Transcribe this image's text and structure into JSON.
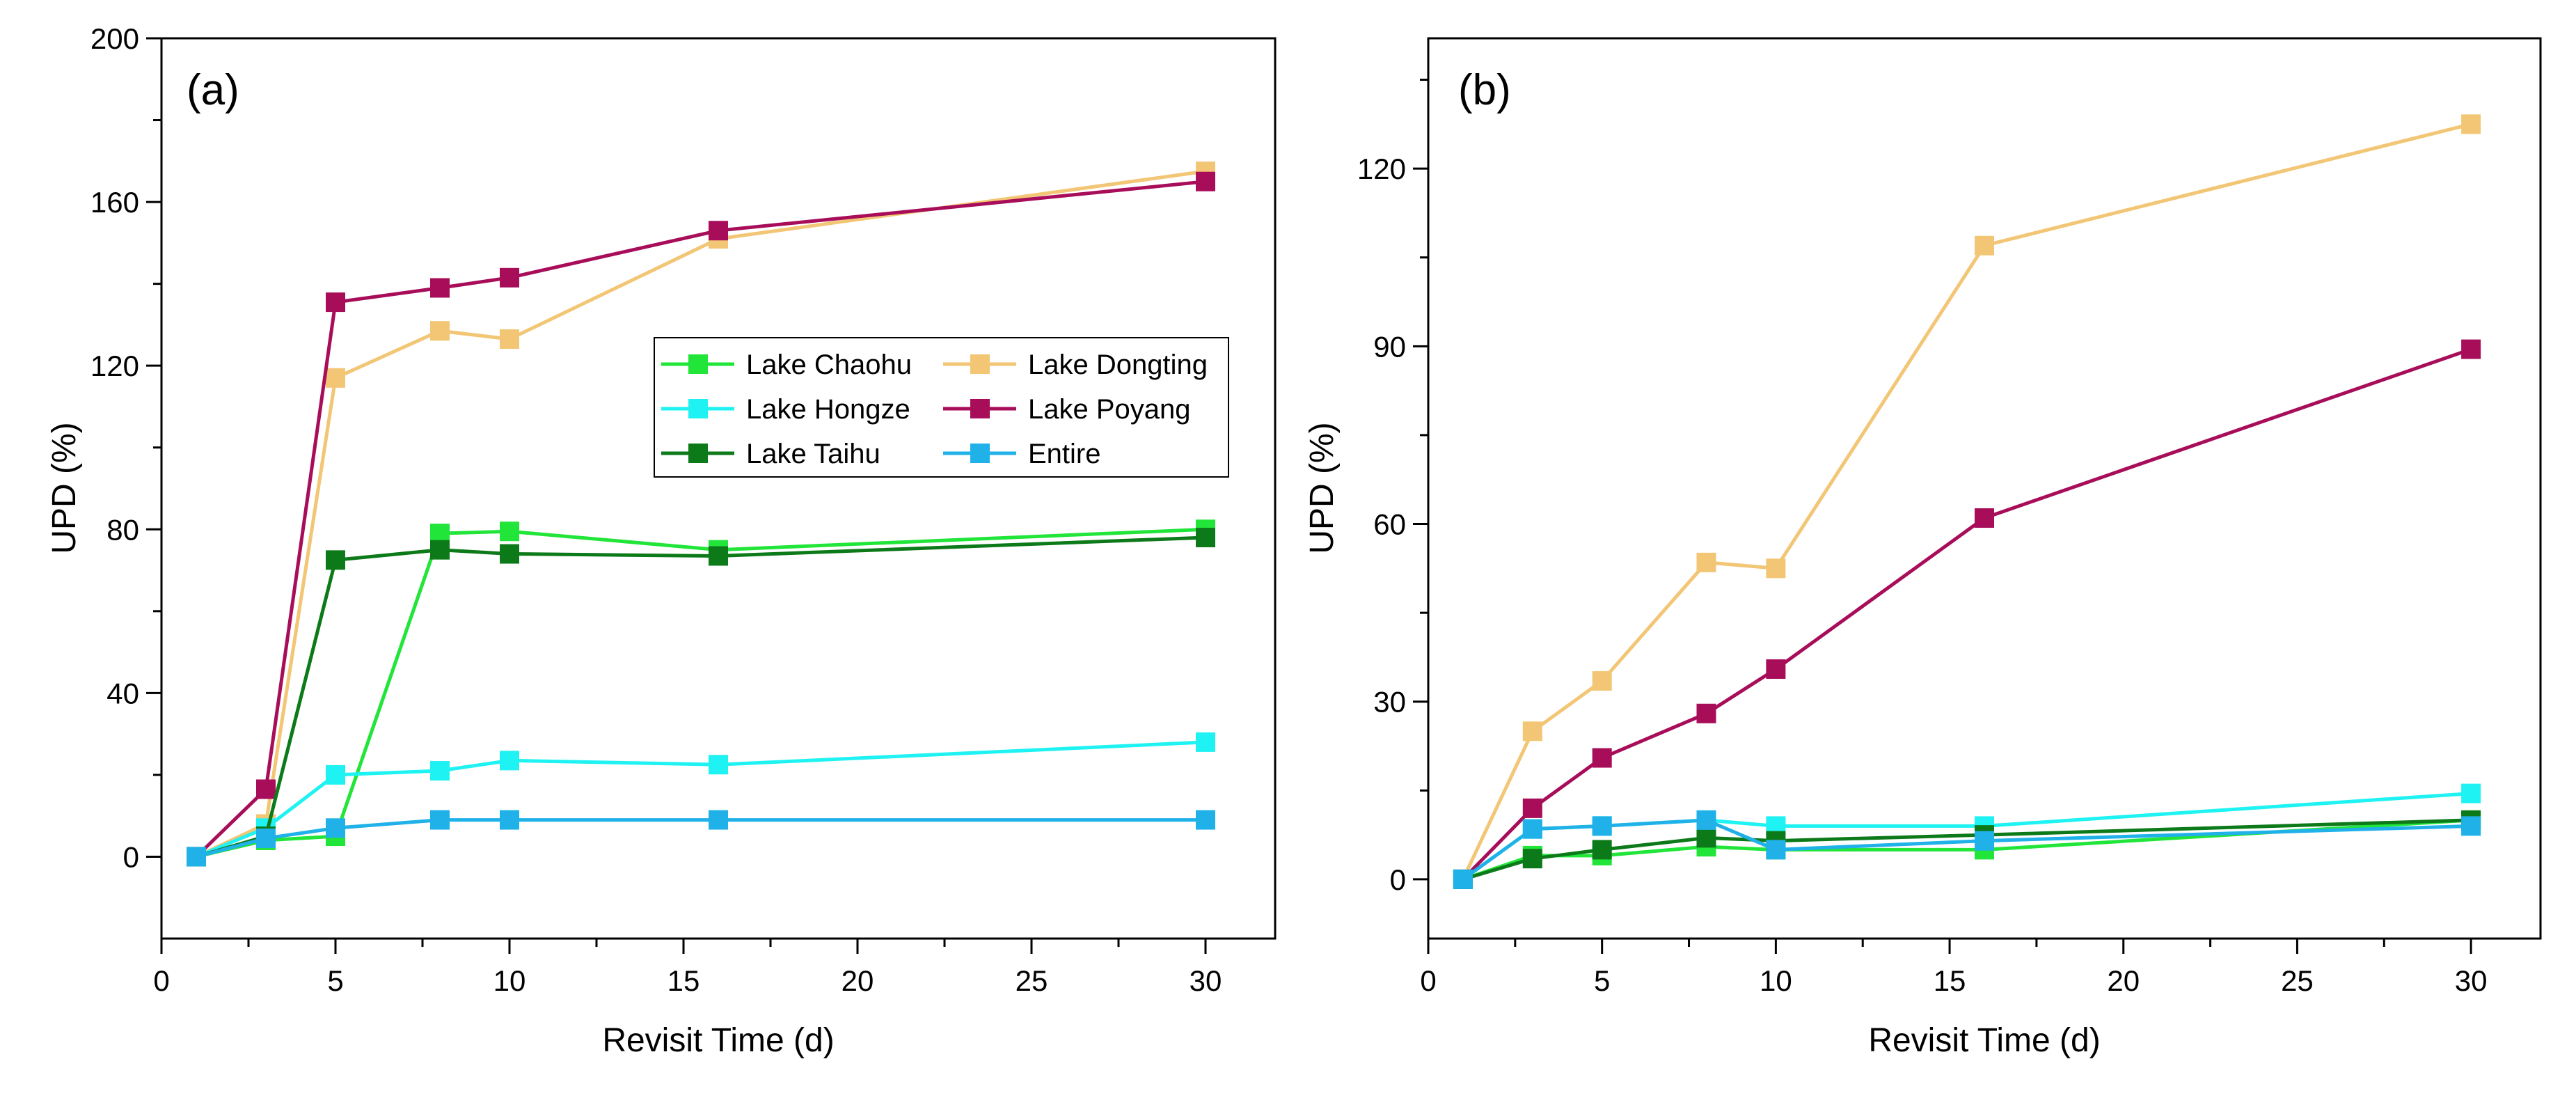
{
  "chart_data": [
    {
      "type": "line",
      "panel_label": "(a)",
      "xlabel": "Revisit Time (d)",
      "ylabel": "UPD (%)",
      "xlim": [
        0,
        32
      ],
      "ylim": [
        -20,
        200
      ],
      "xticks": [
        0,
        5,
        10,
        15,
        20,
        25,
        30
      ],
      "yticks": [
        0,
        40,
        80,
        120,
        160,
        200
      ],
      "x": [
        1,
        3,
        5,
        8,
        10,
        16,
        30
      ],
      "legend_position": "center-right",
      "series": [
        {
          "name": "Lake Chaohu",
          "color": "#22e53a",
          "values": [
            0,
            4,
            5,
            79,
            79.5,
            75,
            80
          ]
        },
        {
          "name": "Lake Dongting",
          "color": "#f2c675",
          "values": [
            0,
            8,
            117,
            128.5,
            126.5,
            151,
            167.5
          ]
        },
        {
          "name": "Lake Hongze",
          "color": "#1ff2f2",
          "values": [
            0,
            7,
            20,
            21,
            23.5,
            22.5,
            28
          ]
        },
        {
          "name": "Lake Poyang",
          "color": "#a80d5a",
          "values": [
            0,
            16.5,
            135.5,
            139,
            141.5,
            153,
            165
          ]
        },
        {
          "name": "Lake Taihu",
          "color": "#0d7a1a",
          "values": [
            0,
            5,
            72.5,
            75,
            74,
            73.5,
            78
          ]
        },
        {
          "name": "Entire",
          "color": "#1fb1e8",
          "values": [
            0,
            4.5,
            7,
            9,
            9,
            9,
            9
          ]
        }
      ]
    },
    {
      "type": "line",
      "panel_label": "(b)",
      "xlabel": "Revisit Time (d)",
      "ylabel": "UPD (%)",
      "xlim": [
        0,
        32
      ],
      "ylim": [
        -10,
        142
      ],
      "xticks": [
        0,
        5,
        10,
        15,
        20,
        25,
        30
      ],
      "yticks": [
        0,
        30,
        60,
        90,
        120
      ],
      "x": [
        1,
        3,
        5,
        8,
        10,
        16,
        30
      ],
      "series": [
        {
          "name": "Lake Chaohu",
          "color": "#22e53a",
          "values": [
            0,
            4,
            4,
            5.5,
            5,
            5,
            10
          ]
        },
        {
          "name": "Lake Dongting",
          "color": "#f2c675",
          "values": [
            0,
            25,
            33.5,
            53.5,
            52.5,
            107,
            127.5
          ]
        },
        {
          "name": "Lake Hongze",
          "color": "#1ff2f2",
          "values": [
            0,
            8.5,
            9,
            10,
            9,
            9,
            14.5
          ]
        },
        {
          "name": "Lake Poyang",
          "color": "#a80d5a",
          "values": [
            0,
            12,
            20.5,
            28,
            35.5,
            61,
            89.5
          ]
        },
        {
          "name": "Lake Taihu",
          "color": "#0d7a1a",
          "values": [
            0,
            3.5,
            5,
            7,
            6.5,
            7.5,
            10
          ]
        },
        {
          "name": "Entire",
          "color": "#1fb1e8",
          "values": [
            0,
            8.5,
            9,
            10,
            5,
            6.5,
            9
          ]
        }
      ]
    }
  ]
}
